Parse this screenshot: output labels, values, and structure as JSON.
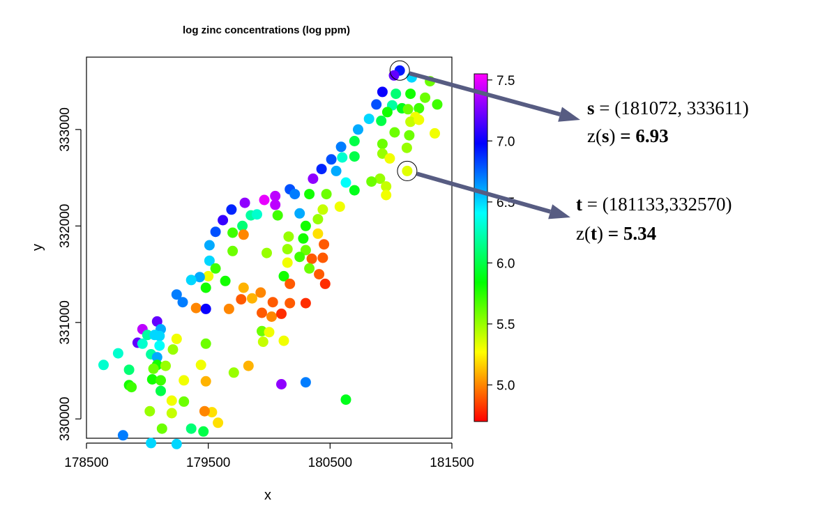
{
  "chart_data": {
    "type": "scatter",
    "title": "log zinc concentrations (log ppm)",
    "xlabel": "x",
    "ylabel": "y",
    "xlim": [
      178500,
      181500
    ],
    "ylim": [
      329800,
      333750
    ],
    "xticks": [
      "178500",
      "179500",
      "180500",
      "181500"
    ],
    "yticks": [
      "330000",
      "331000",
      "332000",
      "333000"
    ],
    "xtick_values": [
      178500,
      179500,
      180500,
      181500
    ],
    "ytick_values": [
      330000,
      331000,
      332000,
      333000
    ],
    "grid": false,
    "color_scale": {
      "range": [
        4.7,
        7.55
      ],
      "ticks": [
        "5.0",
        "5.5",
        "6.0",
        "6.5",
        "7.0",
        "7.5"
      ],
      "tick_values": [
        5.0,
        5.5,
        6.0,
        6.5,
        7.0,
        7.5
      ],
      "palette": "rainbow"
    },
    "points": [
      {
        "x": 181072,
        "y": 333611,
        "z": 6.93
      },
      {
        "x": 181025,
        "y": 333560,
        "z": 7.2
      },
      {
        "x": 181170,
        "y": 333540,
        "z": 6.5
      },
      {
        "x": 181320,
        "y": 333500,
        "z": 5.6
      },
      {
        "x": 180930,
        "y": 333390,
        "z": 7.0
      },
      {
        "x": 181040,
        "y": 333370,
        "z": 6.1
      },
      {
        "x": 181160,
        "y": 333370,
        "z": 5.8
      },
      {
        "x": 181280,
        "y": 333330,
        "z": 5.6
      },
      {
        "x": 180880,
        "y": 333260,
        "z": 6.8
      },
      {
        "x": 181010,
        "y": 333250,
        "z": 6.2
      },
      {
        "x": 181090,
        "y": 333220,
        "z": 5.9
      },
      {
        "x": 181140,
        "y": 333210,
        "z": 5.6
      },
      {
        "x": 181230,
        "y": 333220,
        "z": 5.7
      },
      {
        "x": 181380,
        "y": 333260,
        "z": 5.7
      },
      {
        "x": 180970,
        "y": 333180,
        "z": 5.8
      },
      {
        "x": 181200,
        "y": 333130,
        "z": 5.3
      },
      {
        "x": 180820,
        "y": 333110,
        "z": 6.5
      },
      {
        "x": 180920,
        "y": 333090,
        "z": 6.0
      },
      {
        "x": 181160,
        "y": 333080,
        "z": 5.4
      },
      {
        "x": 181230,
        "y": 333100,
        "z": 5.3
      },
      {
        "x": 180730,
        "y": 333000,
        "z": 6.6
      },
      {
        "x": 181030,
        "y": 332970,
        "z": 5.6
      },
      {
        "x": 181150,
        "y": 332940,
        "z": 5.6
      },
      {
        "x": 181360,
        "y": 332960,
        "z": 5.3
      },
      {
        "x": 180700,
        "y": 332880,
        "z": 6.0
      },
      {
        "x": 180930,
        "y": 332850,
        "z": 5.6
      },
      {
        "x": 181130,
        "y": 332810,
        "z": 5.5
      },
      {
        "x": 180590,
        "y": 332820,
        "z": 6.7
      },
      {
        "x": 180930,
        "y": 332750,
        "z": 5.5
      },
      {
        "x": 180990,
        "y": 332700,
        "z": 5.3
      },
      {
        "x": 180600,
        "y": 332710,
        "z": 6.3
      },
      {
        "x": 180700,
        "y": 332720,
        "z": 6.0
      },
      {
        "x": 180510,
        "y": 332690,
        "z": 6.8
      },
      {
        "x": 180430,
        "y": 332590,
        "z": 6.9
      },
      {
        "x": 181133,
        "y": 332570,
        "z": 5.34
      },
      {
        "x": 180550,
        "y": 332570,
        "z": 6.6
      },
      {
        "x": 180910,
        "y": 332490,
        "z": 5.5
      },
      {
        "x": 180840,
        "y": 332460,
        "z": 5.6
      },
      {
        "x": 180360,
        "y": 332490,
        "z": 7.3
      },
      {
        "x": 180630,
        "y": 332450,
        "z": 6.4
      },
      {
        "x": 180960,
        "y": 332410,
        "z": 5.4
      },
      {
        "x": 180700,
        "y": 332370,
        "z": 5.9
      },
      {
        "x": 180960,
        "y": 332320,
        "z": 5.3
      },
      {
        "x": 180170,
        "y": 332380,
        "z": 6.8
      },
      {
        "x": 180210,
        "y": 332330,
        "z": 6.7
      },
      {
        "x": 180330,
        "y": 332330,
        "z": 5.8
      },
      {
        "x": 180470,
        "y": 332330,
        "z": 5.6
      },
      {
        "x": 180050,
        "y": 332310,
        "z": 7.4
      },
      {
        "x": 179960,
        "y": 332270,
        "z": 7.5
      },
      {
        "x": 179800,
        "y": 332240,
        "z": 7.3
      },
      {
        "x": 180050,
        "y": 332220,
        "z": 7.4
      },
      {
        "x": 180440,
        "y": 332170,
        "z": 5.4
      },
      {
        "x": 180580,
        "y": 332200,
        "z": 5.3
      },
      {
        "x": 179690,
        "y": 332170,
        "z": 6.9
      },
      {
        "x": 179850,
        "y": 332110,
        "z": 6.2
      },
      {
        "x": 180250,
        "y": 332130,
        "z": 6.6
      },
      {
        "x": 179900,
        "y": 332120,
        "z": 6.3
      },
      {
        "x": 179620,
        "y": 332060,
        "z": 7.1
      },
      {
        "x": 180070,
        "y": 332110,
        "z": 5.7
      },
      {
        "x": 180400,
        "y": 332070,
        "z": 5.5
      },
      {
        "x": 179780,
        "y": 332000,
        "z": 6.1
      },
      {
        "x": 180300,
        "y": 332000,
        "z": 5.8
      },
      {
        "x": 179560,
        "y": 331940,
        "z": 6.8
      },
      {
        "x": 179700,
        "y": 331930,
        "z": 5.7
      },
      {
        "x": 179790,
        "y": 331910,
        "z": 5.0
      },
      {
        "x": 180400,
        "y": 331920,
        "z": 5.2
      },
      {
        "x": 180160,
        "y": 331890,
        "z": 5.5
      },
      {
        "x": 180280,
        "y": 331870,
        "z": 5.8
      },
      {
        "x": 180450,
        "y": 331810,
        "z": 4.9
      },
      {
        "x": 179510,
        "y": 331800,
        "z": 6.6
      },
      {
        "x": 180150,
        "y": 331760,
        "z": 5.5
      },
      {
        "x": 180300,
        "y": 331750,
        "z": 5.6
      },
      {
        "x": 179700,
        "y": 331740,
        "z": 5.6
      },
      {
        "x": 179980,
        "y": 331720,
        "z": 5.5
      },
      {
        "x": 180350,
        "y": 331660,
        "z": 4.9
      },
      {
        "x": 180440,
        "y": 331670,
        "z": 4.9
      },
      {
        "x": 180250,
        "y": 331680,
        "z": 5.7
      },
      {
        "x": 180150,
        "y": 331620,
        "z": 5.3
      },
      {
        "x": 179510,
        "y": 331640,
        "z": 6.5
      },
      {
        "x": 179560,
        "y": 331560,
        "z": 5.7
      },
      {
        "x": 179500,
        "y": 331480,
        "z": 5.3
      },
      {
        "x": 180330,
        "y": 331560,
        "z": 5.6
      },
      {
        "x": 180410,
        "y": 331500,
        "z": 4.9
      },
      {
        "x": 180120,
        "y": 331480,
        "z": 5.8
      },
      {
        "x": 179430,
        "y": 331470,
        "z": 6.6
      },
      {
        "x": 179360,
        "y": 331440,
        "z": 6.5
      },
      {
        "x": 179640,
        "y": 331430,
        "z": 5.8
      },
      {
        "x": 180170,
        "y": 331400,
        "z": 4.9
      },
      {
        "x": 180460,
        "y": 331400,
        "z": 4.8
      },
      {
        "x": 179480,
        "y": 331360,
        "z": 5.8
      },
      {
        "x": 179790,
        "y": 331360,
        "z": 5.1
      },
      {
        "x": 179930,
        "y": 331310,
        "z": 5.0
      },
      {
        "x": 179240,
        "y": 331290,
        "z": 6.7
      },
      {
        "x": 179290,
        "y": 331210,
        "z": 6.7
      },
      {
        "x": 179770,
        "y": 331240,
        "z": 4.9
      },
      {
        "x": 179860,
        "y": 331250,
        "z": 5.1
      },
      {
        "x": 180030,
        "y": 331210,
        "z": 4.9
      },
      {
        "x": 180170,
        "y": 331200,
        "z": 4.9
      },
      {
        "x": 180300,
        "y": 331200,
        "z": 4.8
      },
      {
        "x": 179400,
        "y": 331150,
        "z": 5.0
      },
      {
        "x": 179670,
        "y": 331140,
        "z": 5.0
      },
      {
        "x": 179480,
        "y": 331140,
        "z": 7.0
      },
      {
        "x": 179940,
        "y": 331100,
        "z": 4.9
      },
      {
        "x": 180020,
        "y": 331060,
        "z": 5.0
      },
      {
        "x": 180100,
        "y": 331090,
        "z": 4.8
      },
      {
        "x": 179080,
        "y": 331010,
        "z": 7.2
      },
      {
        "x": 178960,
        "y": 330930,
        "z": 7.4
      },
      {
        "x": 179110,
        "y": 330930,
        "z": 6.6
      },
      {
        "x": 179000,
        "y": 330870,
        "z": 6.2
      },
      {
        "x": 179060,
        "y": 330870,
        "z": 6.5
      },
      {
        "x": 179100,
        "y": 330860,
        "z": 6.5
      },
      {
        "x": 179940,
        "y": 330910,
        "z": 5.6
      },
      {
        "x": 180000,
        "y": 330900,
        "z": 5.3
      },
      {
        "x": 179240,
        "y": 330830,
        "z": 5.3
      },
      {
        "x": 178920,
        "y": 330790,
        "z": 7.2
      },
      {
        "x": 178960,
        "y": 330780,
        "z": 6.3
      },
      {
        "x": 179100,
        "y": 330760,
        "z": 6.4
      },
      {
        "x": 179480,
        "y": 330780,
        "z": 5.6
      },
      {
        "x": 179950,
        "y": 330800,
        "z": 5.4
      },
      {
        "x": 180120,
        "y": 330810,
        "z": 5.3
      },
      {
        "x": 179210,
        "y": 330720,
        "z": 5.5
      },
      {
        "x": 179030,
        "y": 330670,
        "z": 6.2
      },
      {
        "x": 179080,
        "y": 330640,
        "z": 6.6
      },
      {
        "x": 178760,
        "y": 330680,
        "z": 6.3
      },
      {
        "x": 179440,
        "y": 330560,
        "z": 5.3
      },
      {
        "x": 179080,
        "y": 330560,
        "z": 5.8
      },
      {
        "x": 178640,
        "y": 330560,
        "z": 6.3
      },
      {
        "x": 178850,
        "y": 330510,
        "z": 6.1
      },
      {
        "x": 179150,
        "y": 330550,
        "z": 5.5
      },
      {
        "x": 179830,
        "y": 330550,
        "z": 5.1
      },
      {
        "x": 179050,
        "y": 330520,
        "z": 5.6
      },
      {
        "x": 179710,
        "y": 330480,
        "z": 5.5
      },
      {
        "x": 179300,
        "y": 330400,
        "z": 5.3
      },
      {
        "x": 179040,
        "y": 330410,
        "z": 5.8
      },
      {
        "x": 179110,
        "y": 330400,
        "z": 5.7
      },
      {
        "x": 179480,
        "y": 330390,
        "z": 5.1
      },
      {
        "x": 180300,
        "y": 330380,
        "z": 6.7
      },
      {
        "x": 180100,
        "y": 330360,
        "z": 7.3
      },
      {
        "x": 178850,
        "y": 330350,
        "z": 5.8
      },
      {
        "x": 178870,
        "y": 330330,
        "z": 5.7
      },
      {
        "x": 179110,
        "y": 330290,
        "z": 6.0
      },
      {
        "x": 180630,
        "y": 330200,
        "z": 5.9
      },
      {
        "x": 179200,
        "y": 330190,
        "z": 5.3
      },
      {
        "x": 179300,
        "y": 330180,
        "z": 5.6
      },
      {
        "x": 179020,
        "y": 330080,
        "z": 5.5
      },
      {
        "x": 179200,
        "y": 330060,
        "z": 5.4
      },
      {
        "x": 179530,
        "y": 330070,
        "z": 5.2
      },
      {
        "x": 179470,
        "y": 330080,
        "z": 5.0
      },
      {
        "x": 179120,
        "y": 329900,
        "z": 5.6
      },
      {
        "x": 179360,
        "y": 329900,
        "z": 6.1
      },
      {
        "x": 179460,
        "y": 329870,
        "z": 6.0
      },
      {
        "x": 179580,
        "y": 329960,
        "z": 5.2
      },
      {
        "x": 178800,
        "y": 329830,
        "z": 6.7
      },
      {
        "x": 179030,
        "y": 329750,
        "z": 6.5
      },
      {
        "x": 179240,
        "y": 329740,
        "z": 6.5
      }
    ],
    "annotations": [
      {
        "name": "s",
        "bold": "s",
        "eq": " = ",
        "coords": "(181072, 333611)",
        "zlabel": "z(",
        "zbold": "s",
        "zclose": ")",
        "zval": " = 6.93",
        "x": 181072,
        "y": 333611
      },
      {
        "name": "t",
        "bold": "t",
        "eq": " = ",
        "coords": "(181133,332570)",
        "zlabel": "z(",
        "zbold": "t",
        "zclose": ")",
        "zval": " = 5.34",
        "x": 181133,
        "y": 332570
      }
    ]
  }
}
